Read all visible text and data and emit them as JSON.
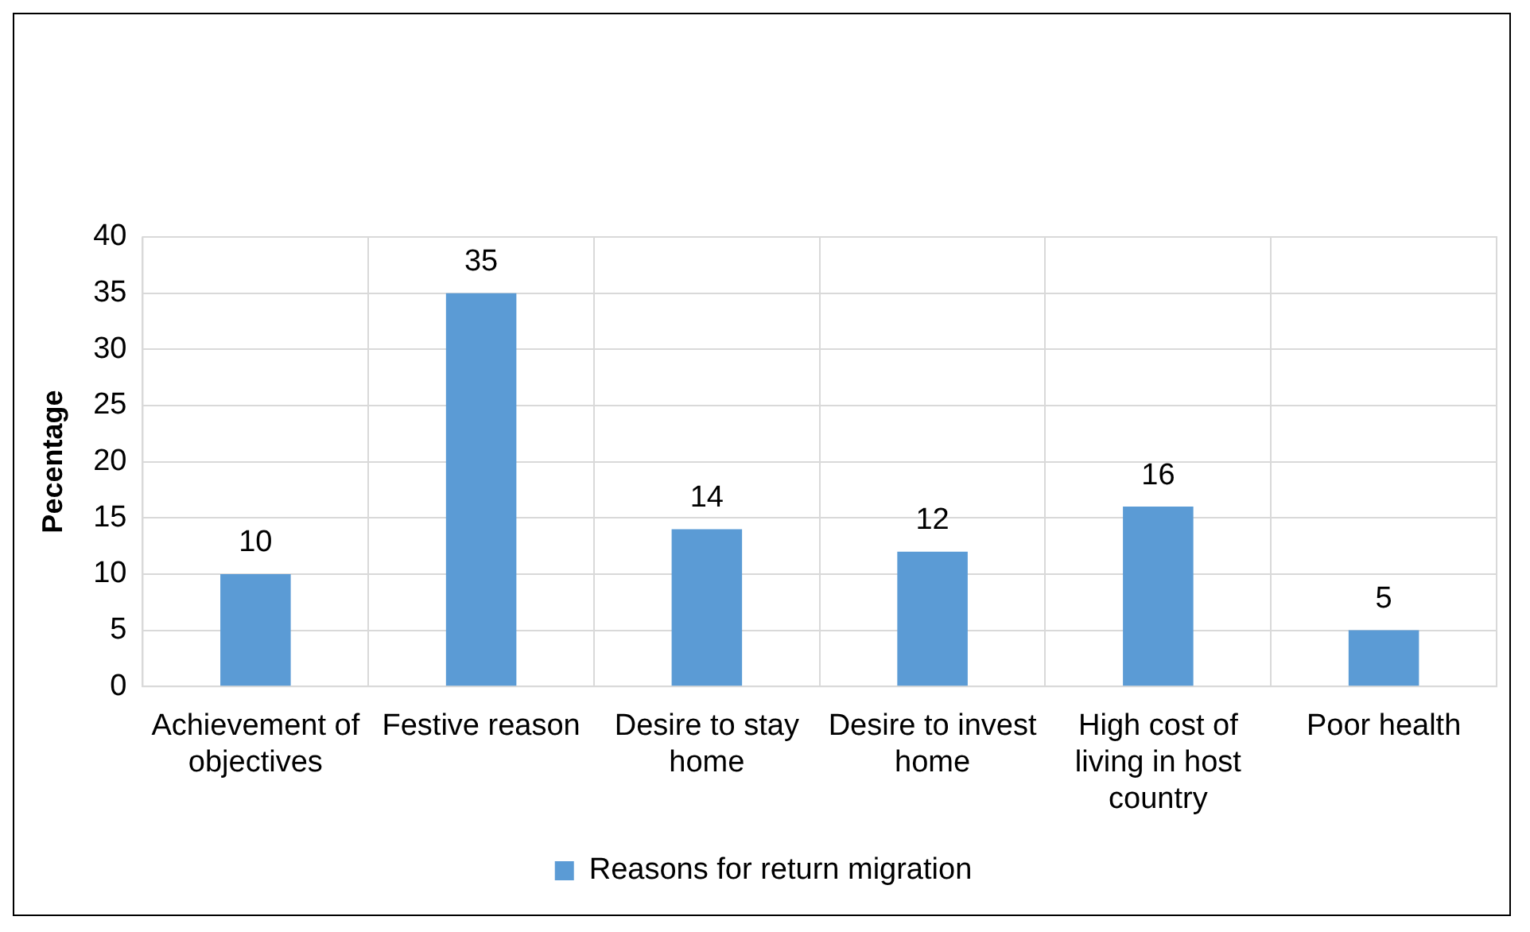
{
  "chart_data": {
    "type": "bar",
    "ylabel": "Pecentage",
    "categories": [
      "Achievement of objectives",
      "Festive reason",
      "Desire to stay home",
      "Desire to invest home",
      "High cost of living in host country",
      "Poor health"
    ],
    "series": [
      {
        "name": "Reasons for return migration",
        "color": "#5b9bd5",
        "values": [
          10,
          35,
          14,
          12,
          16,
          5
        ]
      }
    ],
    "ylim": [
      0,
      40
    ],
    "yticks": [
      0,
      5,
      10,
      15,
      20,
      25,
      30,
      35,
      40
    ],
    "grid": true,
    "legend": "bottom",
    "data_labels": true
  }
}
